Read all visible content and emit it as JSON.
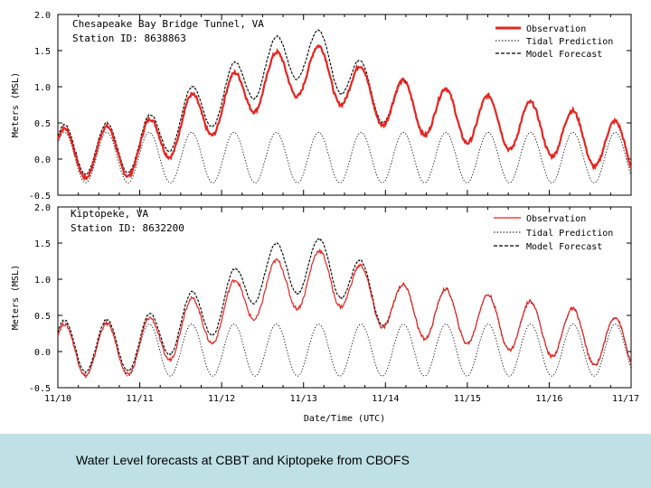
{
  "caption": "Water Level forecasts at CBBT and Kiptopeke from CBOFS",
  "chart_data": [
    {
      "type": "line",
      "title": "Chesapeake Bay Bridge Tunnel, VA",
      "subtitle": "Station ID: 8638863",
      "ylabel": "Meters (MSL)",
      "xlabel": "",
      "ylim": [
        -0.5,
        2.0
      ],
      "yticks": [
        "2.0",
        "1.5",
        "1.0",
        "0.5",
        "0.0",
        "-0.5"
      ],
      "ytick_values": [
        2.0,
        1.5,
        1.0,
        0.5,
        0.0,
        -0.5
      ],
      "xlim": [
        10,
        17
      ],
      "legend": "top-right",
      "series": [
        {
          "name": "Observation",
          "color": "#e8231f",
          "style": "solid-thick"
        },
        {
          "name": "Tidal Prediction",
          "color": "#000000",
          "style": "dotted"
        },
        {
          "name": "Model Forecast",
          "color": "#000000",
          "style": "dashed"
        }
      ],
      "tide_mean": 0.02,
      "tide_amplitude": 0.35,
      "surge_days": [
        10,
        11,
        11.5,
        12,
        12.5,
        13,
        13.3,
        13.8,
        14.2,
        15,
        16,
        17
      ],
      "surge_values": [
        0.05,
        0.1,
        0.45,
        0.72,
        1.05,
        1.22,
        1.18,
        0.85,
        0.72,
        0.55,
        0.38,
        0.1
      ],
      "model_offset": [
        0.05,
        0.05,
        0.1,
        0.12,
        0.2,
        0.25,
        0.2,
        0.05,
        0.02,
        0.0,
        0.0,
        0.0
      ]
    },
    {
      "type": "line",
      "title": "Kiptopeke, VA",
      "subtitle": "Station ID: 8632200",
      "ylabel": "Meters (MSL)",
      "xlabel": "Date/Time (UTC)",
      "ylim": [
        -0.5,
        2.0
      ],
      "yticks": [
        "2.0",
        "1.5",
        "1.0",
        "0.5",
        "0.0",
        "-0.5"
      ],
      "ytick_values": [
        2.0,
        1.5,
        1.0,
        0.5,
        0.0,
        -0.5
      ],
      "xlim": [
        10,
        17
      ],
      "xticks": [
        "11/10",
        "11/11",
        "11/12",
        "11/13",
        "11/14",
        "11/15",
        "11/16",
        "11/17"
      ],
      "xtick_values": [
        10,
        11,
        12,
        13,
        14,
        15,
        16,
        17
      ],
      "legend": "top-right",
      "series": [
        {
          "name": "Observation",
          "color": "#e8231f",
          "style": "solid-thin"
        },
        {
          "name": "Tidal Prediction",
          "color": "#000000",
          "style": "dotted"
        },
        {
          "name": "Model Forecast",
          "color": "#000000",
          "style": "dashed"
        }
      ],
      "tide_mean": 0.02,
      "tide_amplitude": 0.36,
      "surge_days": [
        10,
        11,
        11.5,
        12,
        12.5,
        13,
        13.3,
        13.8,
        14.2,
        15,
        16,
        17
      ],
      "surge_values": [
        0.0,
        0.02,
        0.3,
        0.5,
        0.85,
        0.95,
        1.05,
        0.75,
        0.55,
        0.45,
        0.28,
        0.05
      ],
      "model_offset": [
        0.05,
        0.05,
        0.08,
        0.12,
        0.25,
        0.2,
        0.15,
        0.05,
        0.0,
        0.0,
        0.0,
        0.0
      ]
    }
  ]
}
